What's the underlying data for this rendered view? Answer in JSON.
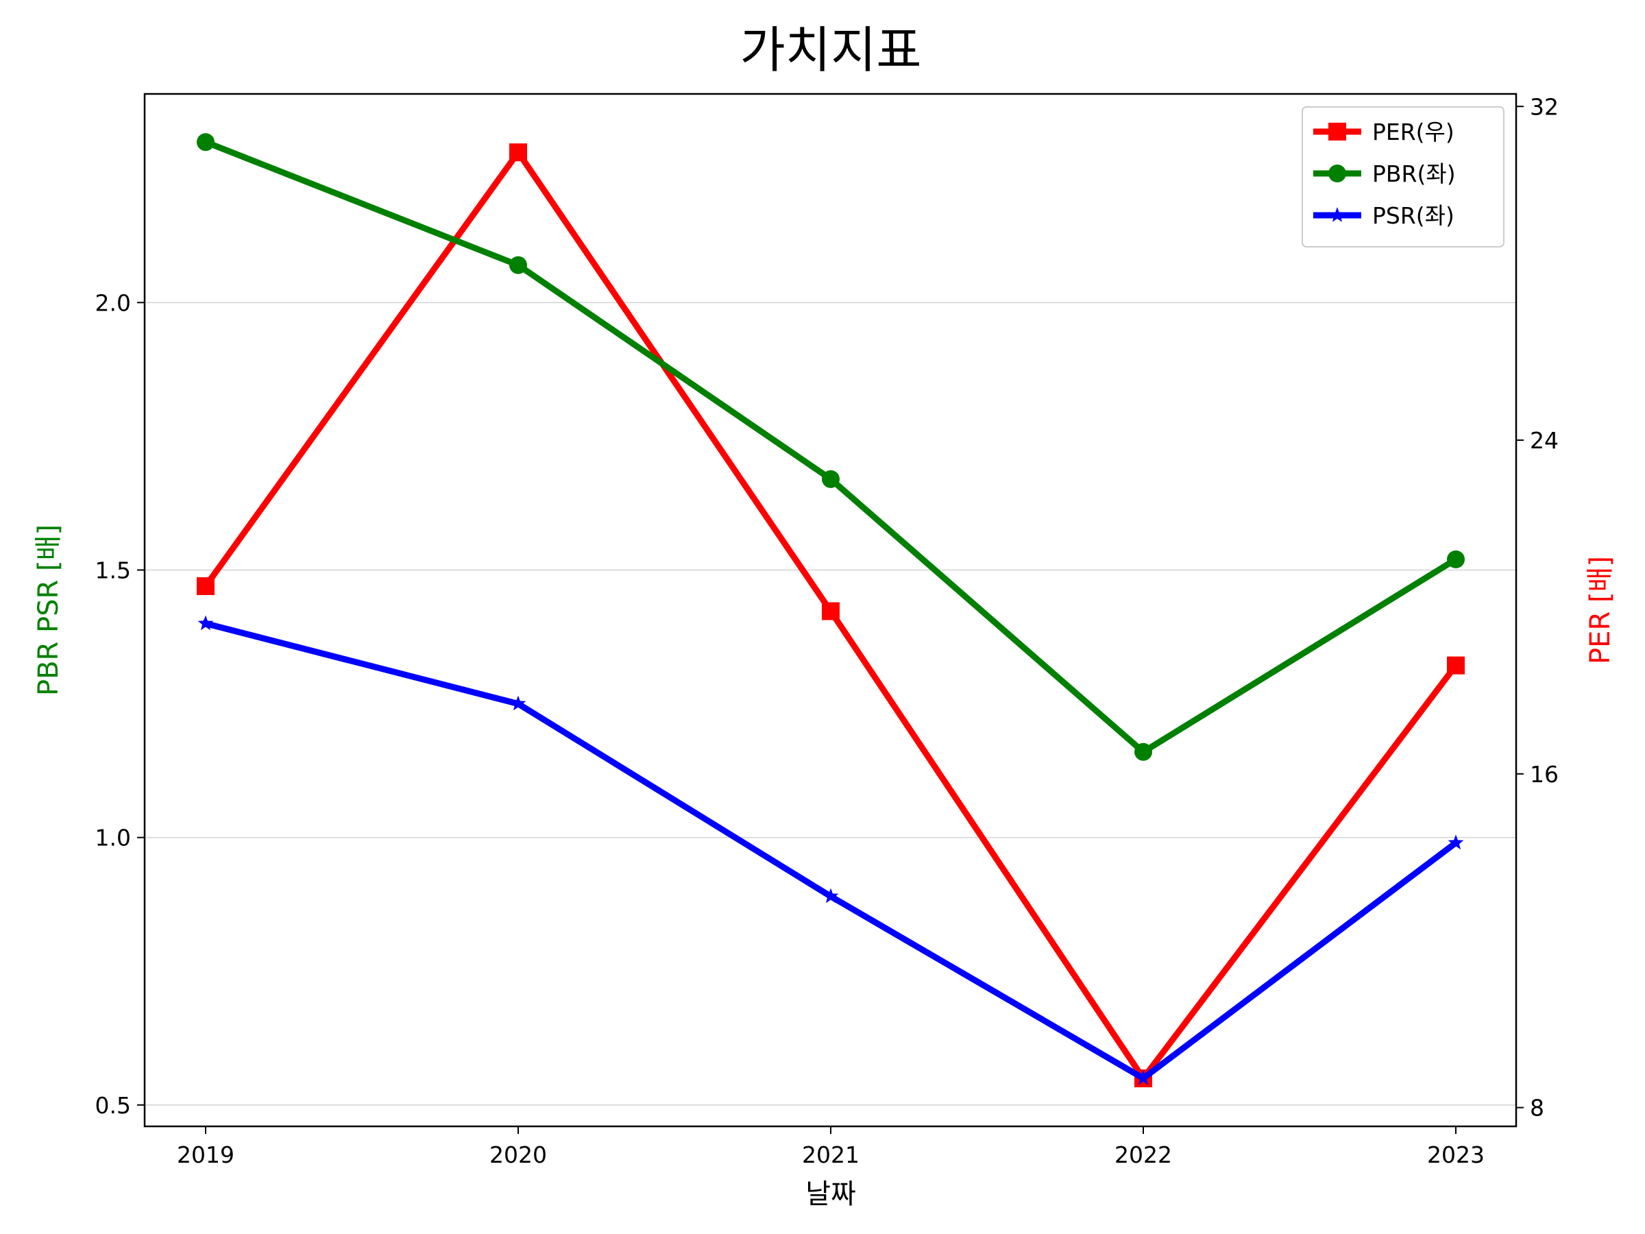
{
  "chart_data": {
    "type": "line",
    "title": "가치지표",
    "xlabel": "날짜",
    "ylabel_left": "PBR PSR [배]",
    "ylabel_right": "PER [배]",
    "categories": [
      "2019",
      "2020",
      "2021",
      "2022",
      "2023"
    ],
    "left_axis": {
      "ylim": [
        0.46,
        2.39
      ],
      "ticks": [
        0.5,
        1.0,
        1.5,
        2.0
      ],
      "tick_labels": [
        "0.5",
        "1.0",
        "1.5",
        "2.0"
      ]
    },
    "right_axis": {
      "ylim": [
        7.55,
        32.3
      ],
      "ticks": [
        8,
        16,
        24,
        32
      ],
      "tick_labels": [
        "8",
        "16",
        "24",
        "32"
      ]
    },
    "series": [
      {
        "name": "PER(우)",
        "axis": "right",
        "color": "#ff0000",
        "marker": "square",
        "values": [
          20.5,
          30.9,
          19.9,
          8.7,
          18.6
        ]
      },
      {
        "name": "PBR(좌)",
        "axis": "left",
        "color": "#008000",
        "marker": "circle",
        "values": [
          2.3,
          2.07,
          1.67,
          1.16,
          1.52
        ]
      },
      {
        "name": "PSR(좌)",
        "axis": "left",
        "color": "#0000ff",
        "marker": "star",
        "values": [
          1.4,
          1.25,
          0.89,
          0.55,
          0.99
        ]
      }
    ],
    "grid": "horizontal (left axis)",
    "legend_position": "top-right",
    "ylabel_left_color": "#008000",
    "ylabel_right_color": "#ff0000"
  }
}
